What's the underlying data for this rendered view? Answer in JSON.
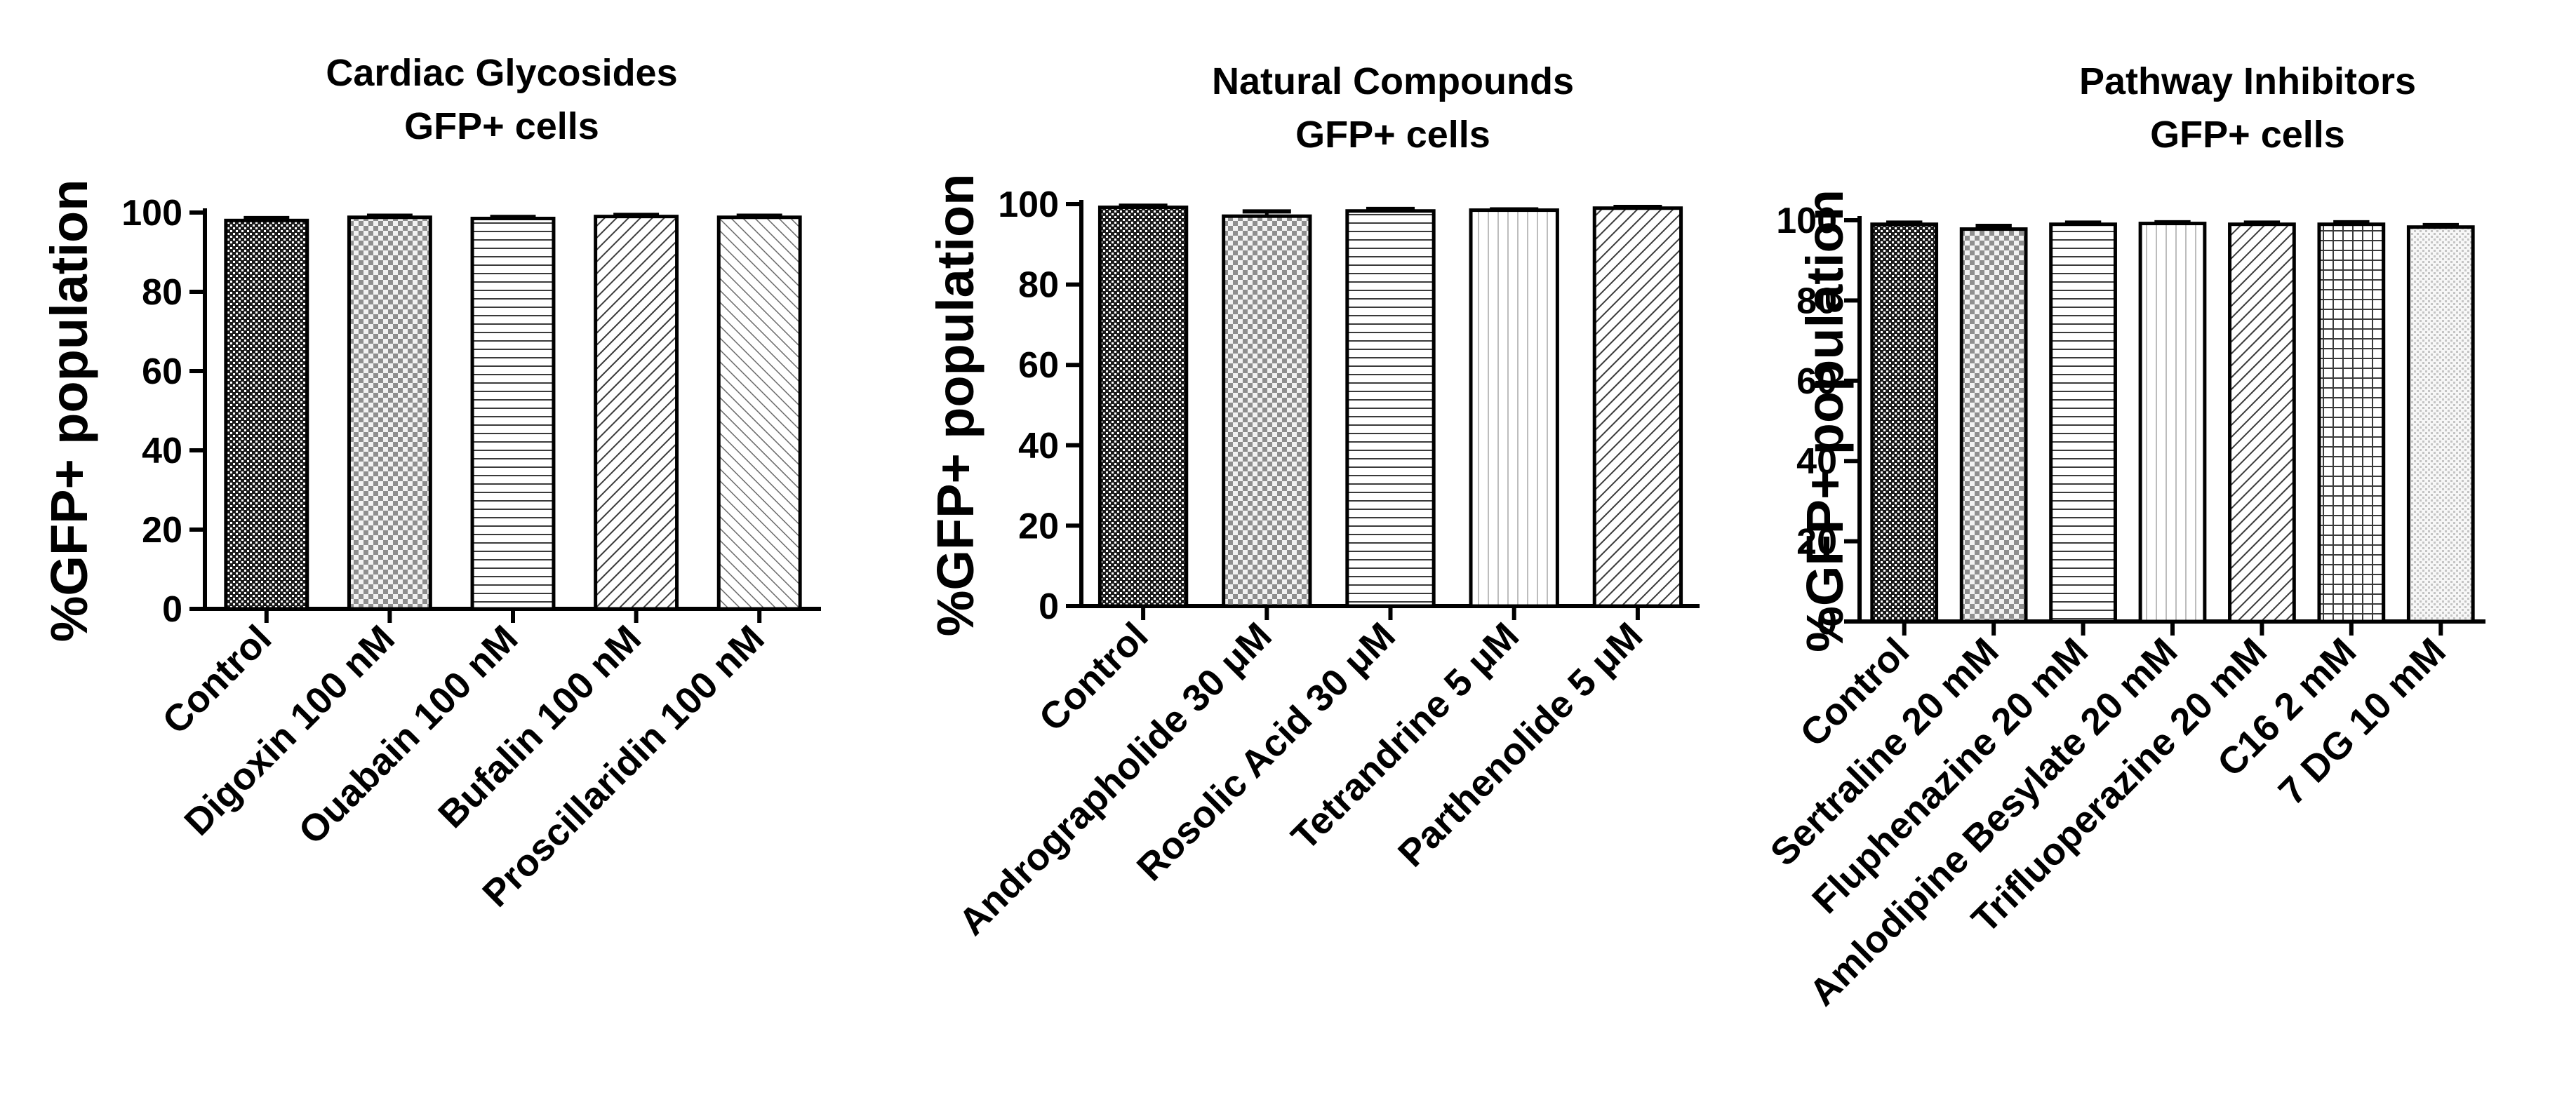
{
  "chart_data": [
    {
      "type": "bar",
      "title_lines": [
        "Cardiac Glycosides",
        "GFP+ cells"
      ],
      "ylabel": "%GFP+ population",
      "ylim": [
        0,
        100
      ],
      "yticks": [
        "0",
        "20",
        "40",
        "60",
        "80",
        "100"
      ],
      "categories": [
        "Control",
        "Digoxin 100 nM",
        "Ouabain 100 nM",
        "Bufalin 100 nM",
        "Proscillaridin 100 nM"
      ],
      "values": [
        98.0,
        98.8,
        98.5,
        99.0,
        98.8
      ],
      "errors": [
        0.6,
        0.4,
        0.4,
        0.4,
        0.4
      ],
      "patterns": [
        "dense-dots",
        "checker",
        "horizontal-lines",
        "diagonal-lines",
        "back-diagonal-lines"
      ]
    },
    {
      "type": "bar",
      "title_lines": [
        "Natural Compounds",
        "GFP+ cells"
      ],
      "ylabel": "%GFP+ population",
      "ylim": [
        0,
        100
      ],
      "yticks": [
        "0",
        "20",
        "40",
        "60",
        "80",
        "100"
      ],
      "categories": [
        "Control",
        "Andrographolide 30 μM",
        "Rosolic Acid 30 μM",
        "Tetrandrine 5 μM",
        "Parthenolide 5 μM"
      ],
      "values": [
        99.2,
        97.0,
        98.3,
        98.5,
        99.0
      ],
      "errors": [
        0.4,
        1.2,
        0.5,
        0.2,
        0.3
      ],
      "patterns": [
        "dense-dots",
        "checker",
        "horizontal-lines",
        "vertical-lines",
        "diagonal-lines"
      ]
    },
    {
      "type": "bar",
      "title_lines": [
        "Pathway Inhibitors",
        "GFP+ cells"
      ],
      "ylabel": "%GFP+ population",
      "ylim": [
        0,
        100
      ],
      "yticks": [
        "0",
        "20",
        "40",
        "60",
        "80",
        "100"
      ],
      "categories": [
        "Control",
        "Sertraline 20 mM",
        "Fluphenazine 20 mM",
        "Amlodipine Besylate 20 mM",
        "Trifluoperazine 20 mM",
        "C16 2 mM",
        "7 DG 10 mM"
      ],
      "values": [
        99.0,
        97.8,
        99.0,
        99.2,
        99.0,
        99.0,
        98.3
      ],
      "errors": [
        0.4,
        0.8,
        0.4,
        0.3,
        0.4,
        0.5,
        0.5
      ],
      "patterns": [
        "dense-dots",
        "checker",
        "horizontal-lines",
        "vertical-lines",
        "diagonal-lines",
        "grid",
        "light-dots"
      ]
    }
  ]
}
